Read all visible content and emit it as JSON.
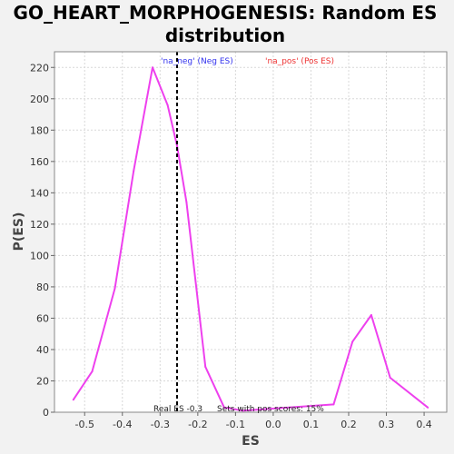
{
  "chart_data": {
    "type": "line",
    "title_line1": "GO_HEART_MORPHOGENESIS: Random ES",
    "title_line2": "distribution",
    "xlabel": "ES",
    "ylabel": "P(ES)",
    "xlim": [
      -0.58,
      0.46
    ],
    "ylim": [
      0,
      230
    ],
    "x_ticks": [
      -0.5,
      -0.4,
      -0.3,
      -0.2,
      -0.1,
      0.0,
      0.1,
      0.2,
      0.3,
      0.4
    ],
    "x_tick_labels": [
      "-0.5",
      "-0.4",
      "-0.3",
      "-0.2",
      "-0.1",
      "0.0",
      "0.1",
      "0.2",
      "0.3",
      "0.4"
    ],
    "y_ticks": [
      0,
      20,
      40,
      60,
      80,
      100,
      120,
      140,
      160,
      180,
      200,
      220
    ],
    "y_tick_labels": [
      "0",
      "20",
      "40",
      "60",
      "80",
      "100",
      "120",
      "140",
      "160",
      "180",
      "200",
      "220"
    ],
    "grid": true,
    "series": [
      {
        "color": "#ee40ee",
        "x": [
          -0.53,
          -0.48,
          -0.42,
          -0.37,
          -0.32,
          -0.28,
          -0.255,
          -0.23,
          -0.18,
          -0.13,
          -0.08,
          0.16,
          0.21,
          0.26,
          0.31,
          0.41
        ],
        "y": [
          8,
          26,
          79,
          154,
          220,
          196,
          170,
          134,
          29,
          3,
          1,
          5,
          45,
          62,
          22,
          3
        ]
      }
    ],
    "vline": {
      "x": -0.255,
      "color": "#000000",
      "style": "dashed"
    },
    "legend": {
      "neg_label": "'na_neg' (Neg ES)",
      "neg_color": "#3333ee",
      "pos_label": "'na_pos' (Pos ES)",
      "pos_color": "#ee3333"
    },
    "annotations": {
      "real_es": "Real ES -0.3",
      "pos_scores": "Sets with pos scores: 15%"
    },
    "colors": {
      "background": "#f2f2f2",
      "plot_background": "#ffffff",
      "grid": "#d8d8d8"
    }
  }
}
